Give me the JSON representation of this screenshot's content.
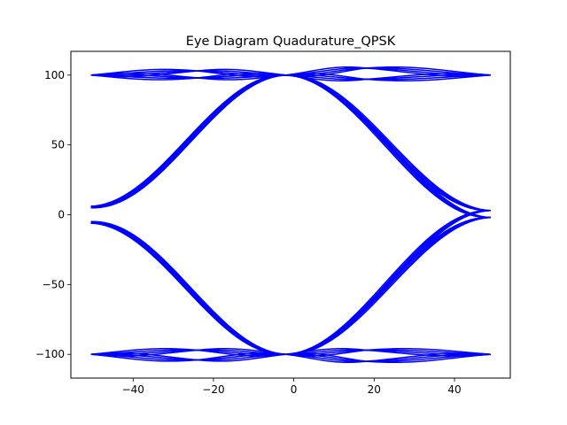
{
  "chart_data": {
    "type": "line",
    "title": "Eye Diagram Quadurature_QPSK",
    "xlabel": "",
    "ylabel": "",
    "xlim": [
      -55.5,
      53.9
    ],
    "ylim": [
      -117,
      117
    ],
    "x_ticks": [
      -40,
      -20,
      0,
      20,
      40
    ],
    "y_ticks": [
      -100,
      -50,
      0,
      50,
      100
    ],
    "x_tick_labels": [
      "−40",
      "−20",
      "0",
      "20",
      "40"
    ],
    "y_tick_labels": [
      "−100",
      "−50",
      "0",
      "50",
      "100"
    ],
    "grid": false,
    "legend": "none",
    "color": "#0000ff",
    "period_x": [
      -50.5,
      49
    ],
    "crossing_x": -2,
    "series": [
      {
        "values": [
          {
            "x": -50.5,
            "y": 6
          },
          {
            "x": -2,
            "y": 100
          },
          {
            "x": 49,
            "y": -2
          }
        ]
      },
      {
        "values": [
          {
            "x": -50.5,
            "y": 5
          },
          {
            "x": -2,
            "y": 100
          },
          {
            "x": 49,
            "y": 3
          }
        ]
      },
      {
        "values": [
          {
            "x": -50.5,
            "y": -6
          },
          {
            "x": -2,
            "y": -100
          },
          {
            "x": 49,
            "y": 3
          }
        ]
      },
      {
        "values": [
          {
            "x": -50.5,
            "y": -5
          },
          {
            "x": -2,
            "y": -100
          },
          {
            "x": 49,
            "y": -2
          }
        ]
      },
      {
        "values": [
          {
            "x": -50.5,
            "y": 100
          },
          {
            "x": -24,
            "y": 103
          },
          {
            "x": -2,
            "y": 100
          },
          {
            "x": 18,
            "y": 105
          },
          {
            "x": 49,
            "y": 100
          }
        ]
      },
      {
        "values": [
          {
            "x": -50.5,
            "y": 100
          },
          {
            "x": -24,
            "y": 98
          },
          {
            "x": -2,
            "y": 100
          },
          {
            "x": 18,
            "y": 97
          },
          {
            "x": 49,
            "y": 100
          }
        ]
      },
      {
        "values": [
          {
            "x": -50.5,
            "y": -100
          },
          {
            "x": -24,
            "y": -104
          },
          {
            "x": -2,
            "y": -100
          },
          {
            "x": 18,
            "y": -105
          },
          {
            "x": 49,
            "y": -100
          }
        ]
      },
      {
        "values": [
          {
            "x": -50.5,
            "y": -100
          },
          {
            "x": -24,
            "y": -97
          },
          {
            "x": -2,
            "y": -100
          },
          {
            "x": 18,
            "y": -97
          },
          {
            "x": 49,
            "y": -100
          }
        ]
      }
    ]
  }
}
